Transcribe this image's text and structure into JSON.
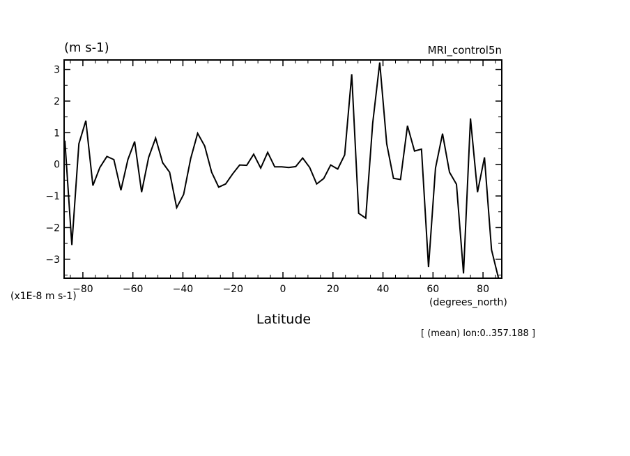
{
  "chart_data": {
    "type": "line",
    "unit_label": "(m s-1)",
    "dataset_label": "MRI_control5n",
    "scale_label": "(x1E-8 m s-1)",
    "x_unit_label": "(degrees_north)",
    "xlabel": "Latitude",
    "footer": "[ (mean) lon:0..357.188 ]",
    "xlim": [
      -87.5,
      87.5
    ],
    "ylim": [
      -3.6,
      3.3
    ],
    "x_ticks": [
      -80,
      -60,
      -40,
      -20,
      0,
      20,
      40,
      60,
      80
    ],
    "y_ticks": [
      -3,
      -2,
      -1,
      0,
      1,
      2,
      3
    ],
    "x_minor_step": 5,
    "y_minor_step": 0.5,
    "color": "#000000",
    "x": [
      -87.2,
      -84.4,
      -81.6,
      -78.8,
      -76.0,
      -73.2,
      -70.4,
      -67.6,
      -64.8,
      -62.0,
      -59.3,
      -56.5,
      -53.7,
      -50.9,
      -48.1,
      -45.3,
      -42.5,
      -39.7,
      -36.9,
      -34.1,
      -31.3,
      -28.5,
      -25.7,
      -22.9,
      -20.1,
      -17.3,
      -14.5,
      -11.7,
      -8.9,
      -6.1,
      -3.3,
      -0.5,
      2.3,
      5.1,
      7.9,
      10.7,
      13.5,
      16.3,
      19.1,
      21.9,
      24.7,
      27.5,
      30.3,
      33.1,
      35.9,
      38.7,
      41.5,
      44.2,
      47.0,
      49.8,
      52.6,
      55.4,
      58.2,
      61.0,
      63.8,
      66.6,
      69.4,
      72.2,
      75.0,
      77.8,
      80.6,
      83.4,
      86.2
    ],
    "values": [
      0.75,
      -2.55,
      0.65,
      1.38,
      -0.67,
      -0.1,
      0.25,
      0.15,
      -0.82,
      0.15,
      0.72,
      -0.88,
      0.22,
      0.83,
      0.05,
      -0.25,
      -1.37,
      -0.95,
      0.18,
      0.98,
      0.58,
      -0.25,
      -0.72,
      -0.62,
      -0.3,
      -0.02,
      -0.03,
      0.32,
      -0.12,
      0.38,
      -0.08,
      -0.08,
      -0.1,
      -0.07,
      0.2,
      -0.1,
      -0.62,
      -0.45,
      -0.02,
      -0.15,
      0.3,
      2.85,
      -1.55,
      -1.7,
      1.3,
      3.22,
      0.65,
      -0.44,
      -0.48,
      1.22,
      0.42,
      0.48,
      -3.25,
      -0.12,
      0.97,
      -0.25,
      -0.63,
      -3.45,
      1.45,
      -0.88,
      0.22,
      -2.7,
      -3.6
    ]
  }
}
